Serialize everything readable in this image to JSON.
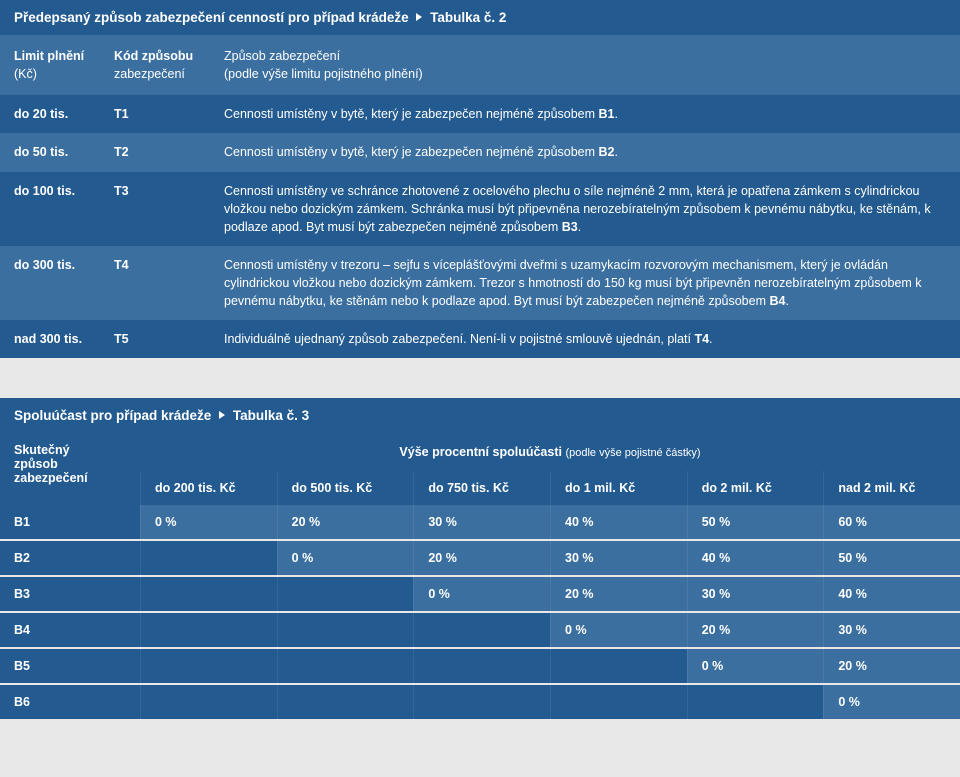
{
  "table1": {
    "title_pre": "Předepsaný způsob zabezpečení cenností pro případ krádeže",
    "title_post": "Tabulka č. 2",
    "header": {
      "col1a": "Limit plnění",
      "col1b": "(Kč)",
      "col2a": "Kód způsobu",
      "col2b": "zabezpečení",
      "col3a": "Způsob zabezpečení",
      "col3b": "(podle výše limitu pojistného plnění)"
    },
    "rows": [
      {
        "limit": "do 20 tis.",
        "code": "T1",
        "desc_pre": "Cennosti umístěny v bytě, který je zabezpečen nejméně způsobem ",
        "desc_bold": "B1",
        "desc_post": "."
      },
      {
        "limit": "do 50 tis.",
        "code": "T2",
        "desc_pre": "Cennosti umístěny v bytě, který je zabezpečen nejméně způsobem ",
        "desc_bold": "B2",
        "desc_post": "."
      },
      {
        "limit": "do 100 tis.",
        "code": "T3",
        "desc_pre": "Cennosti umístěny ve schránce zhotovené z ocelového plechu o síle nejméně 2 mm, která je opatřena zámkem s cylindrickou vložkou nebo dozickým zámkem. Schránka musí být připevněna nerozebíratelným způsobem k pevnému nábytku, ke stěnám, k podlaze apod. Byt musí být zabezpečen nejméně způsobem ",
        "desc_bold": "B3",
        "desc_post": "."
      },
      {
        "limit": "do 300 tis.",
        "code": "T4",
        "desc_pre": "Cennosti umístěny v trezoru – sejfu s víceplášťovými dveřmi s uzamykacím rozvorovým mechanismem, který je ovládán cylindrickou vložkou nebo dozickým zámkem. Trezor s hmotností do 150 kg musí být připevněn nerozebíratelným způsobem k pevnému nábytku, ke stěnám nebo k podlaze apod. Byt musí být zabezpečen nejméně způsobem ",
        "desc_bold": "B4",
        "desc_post": "."
      },
      {
        "limit": "nad 300 tis.",
        "code": "T5",
        "desc_pre": "Individuálně ujednaný způsob zabezpečení. Není-li v pojistné smlouvě ujednán, platí ",
        "desc_bold": "T4",
        "desc_post": "."
      }
    ]
  },
  "table2": {
    "title_pre": "Spoluúčast pro případ krádeže",
    "title_post": "Tabulka č. 3",
    "lead_header_a": "Skutečný",
    "lead_header_b": "způsob",
    "lead_header_c": "zabezpečení",
    "span_header": "Výše procentní spoluúčasti",
    "span_header_sub": "(podle výše pojistné částky)",
    "columns": [
      "do 200 tis. Kč",
      "do 500 tis. Kč",
      "do 750 tis. Kč",
      "do 1 mil. Kč",
      "do 2 mil. Kč",
      "nad 2 mil. Kč"
    ],
    "rows": [
      {
        "label": "B1",
        "cells": [
          "0 %",
          "20 %",
          "30 %",
          "40 %",
          "50 %",
          "60 %"
        ]
      },
      {
        "label": "B2",
        "cells": [
          "",
          "0 %",
          "20 %",
          "30 %",
          "40 %",
          "50 %"
        ]
      },
      {
        "label": "B3",
        "cells": [
          "",
          "",
          "0 %",
          "20 %",
          "30 %",
          "40 %"
        ]
      },
      {
        "label": "B4",
        "cells": [
          "",
          "",
          "",
          "0 %",
          "20 %",
          "30 %"
        ]
      },
      {
        "label": "B5",
        "cells": [
          "",
          "",
          "",
          "",
          "0 %",
          "20 %"
        ]
      },
      {
        "label": "B6",
        "cells": [
          "",
          "",
          "",
          "",
          "",
          "0 %"
        ]
      }
    ]
  },
  "colors": {
    "dark": "#235a8f",
    "light": "#3b6fa0",
    "page_bg": "#e8e8e8"
  }
}
